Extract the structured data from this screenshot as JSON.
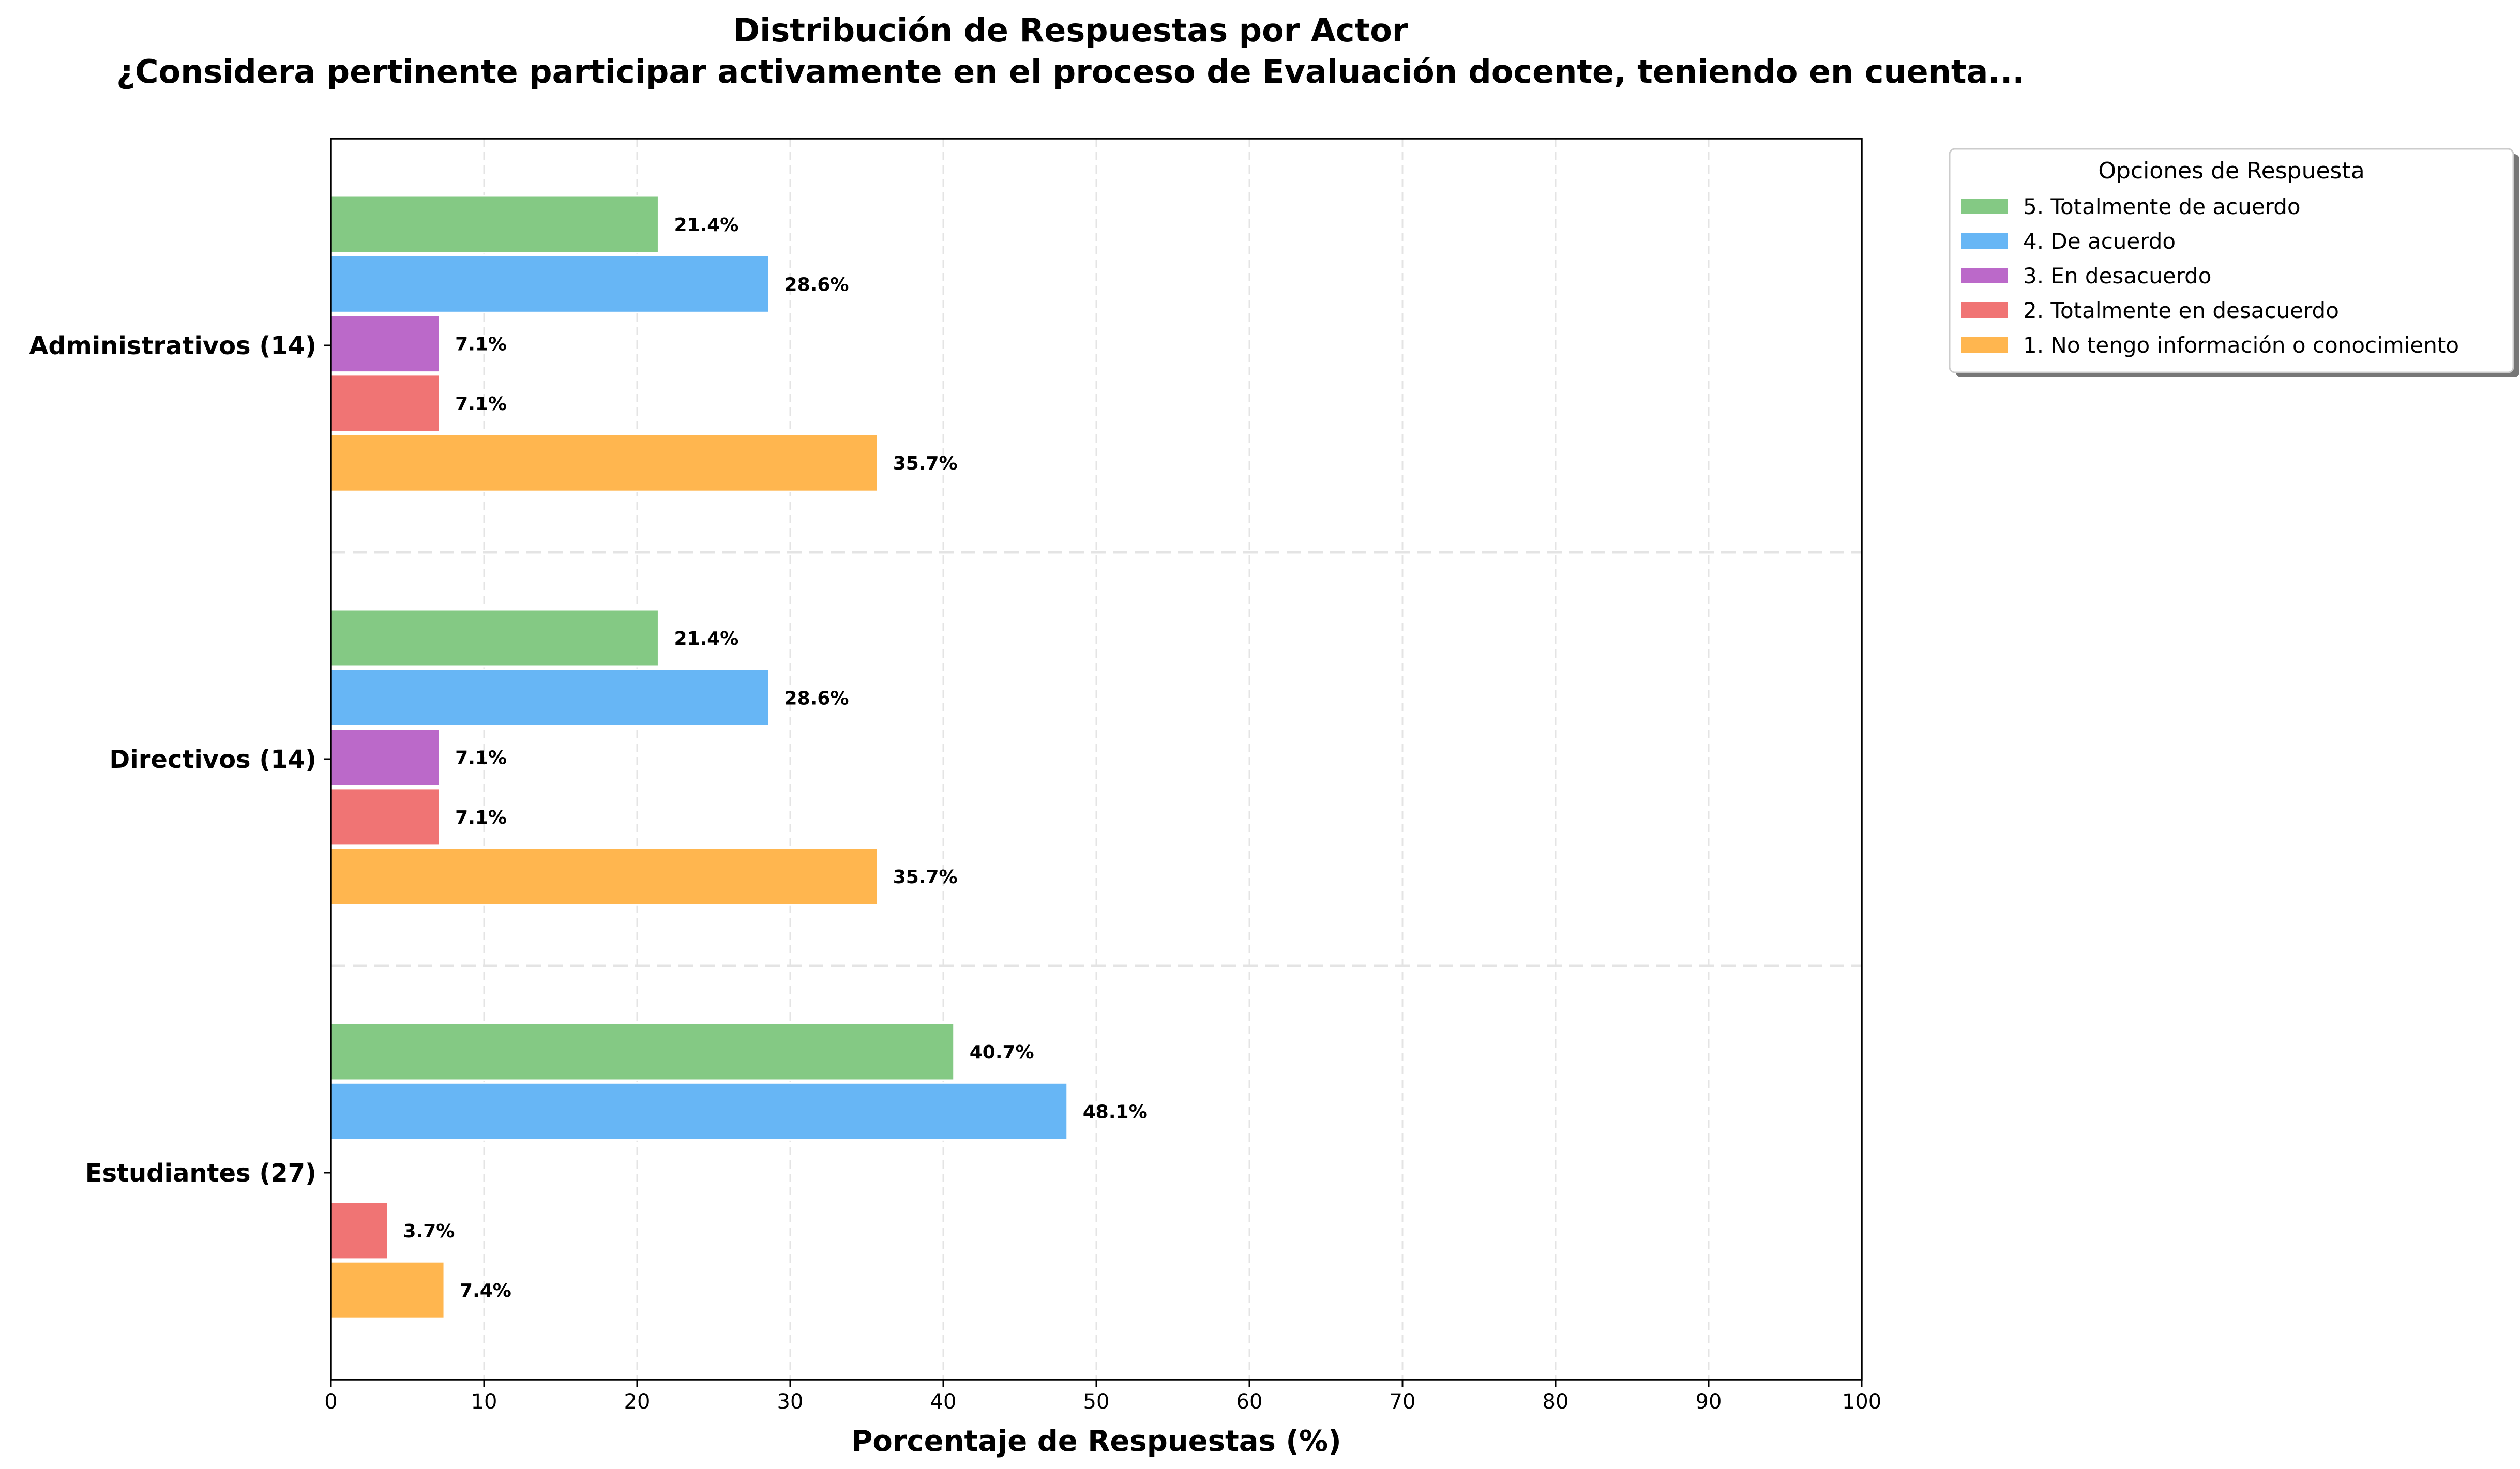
{
  "chart_data": {
    "type": "bar",
    "orientation": "horizontal",
    "title": "Distribución de Respuestas por Actor",
    "subtitle": "¿Considera pertinente participar activamente en el proceso de Evaluación docente, teniendo en cuenta...",
    "xlabel": "Porcentaje de Respuestas (%)",
    "ylabel": "",
    "xlim": [
      0,
      100
    ],
    "xticks": [
      "0",
      "10",
      "20",
      "30",
      "40",
      "50",
      "60",
      "70",
      "80",
      "90",
      "100"
    ],
    "grid": true,
    "legend_title": "Opciones de Respuesta",
    "legend_position": "outside-top-right",
    "categories": [
      "Administrativos (14)",
      "Directivos (14)",
      "Estudiantes (27)"
    ],
    "series": [
      {
        "name": "5. Totalmente de acuerdo",
        "color": "#84c984",
        "values": [
          21.4,
          21.4,
          40.7
        ],
        "labels": [
          "21.4%",
          "21.4%",
          "40.7%"
        ]
      },
      {
        "name": "4. De acuerdo",
        "color": "#67b6f5",
        "values": [
          28.6,
          28.6,
          48.1
        ],
        "labels": [
          "28.6%",
          "28.6%",
          "48.1%"
        ]
      },
      {
        "name": "3. En desacuerdo",
        "color": "#bb69c9",
        "values": [
          7.1,
          7.1,
          0
        ],
        "labels": [
          "7.1%",
          "7.1%",
          ""
        ]
      },
      {
        "name": "2. Totalmente en desacuerdo",
        "color": "#f07474",
        "values": [
          7.1,
          7.1,
          3.7
        ],
        "labels": [
          "7.1%",
          "7.1%",
          "3.7%"
        ]
      },
      {
        "name": "1. No tengo información o conocimiento",
        "color": "#ffb64f",
        "values": [
          35.7,
          35.7,
          7.4
        ],
        "labels": [
          "35.7%",
          "35.7%",
          "7.4%"
        ]
      }
    ]
  }
}
